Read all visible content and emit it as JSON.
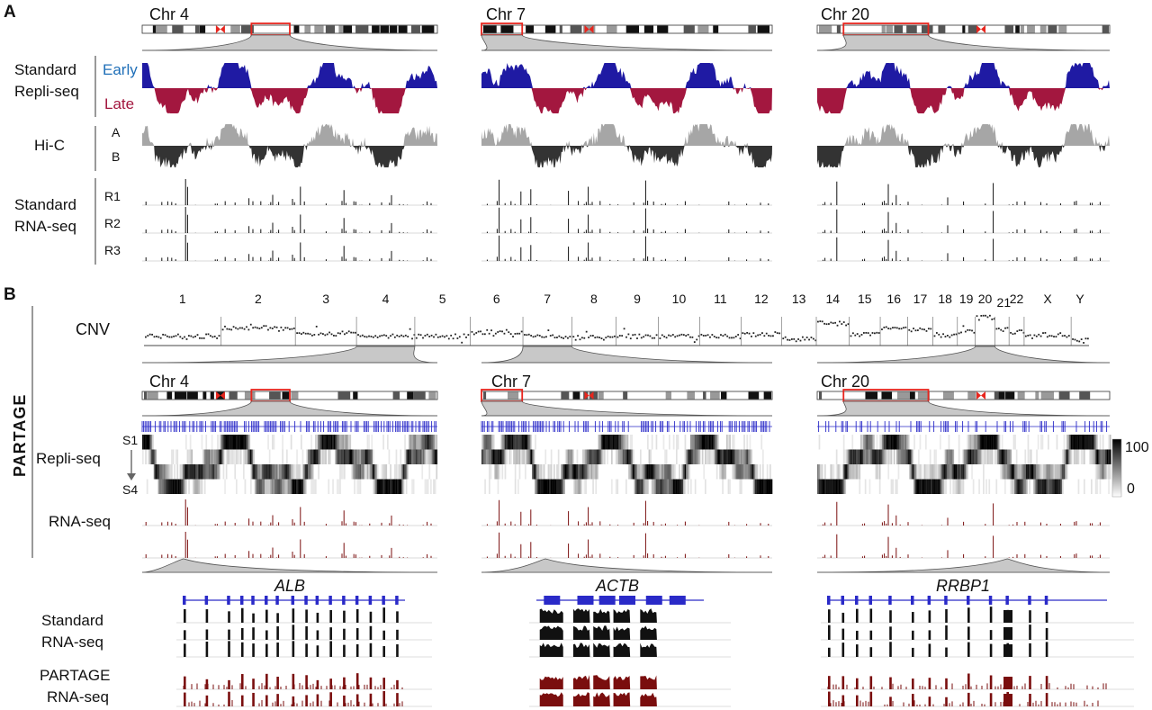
{
  "panel_labels": {
    "a": "A",
    "b": "B"
  },
  "vertical_label": "PARTAGE",
  "colors": {
    "early": "#1f1aa3",
    "late": "#a3173f",
    "hic_a": "#a6a6a6",
    "hic_b": "#333333",
    "rna": "#111111",
    "partage_rna": "#7a0e0e",
    "gene": "#2a2ac8",
    "highlight": "#e8251d",
    "cnv_dot": "#222222",
    "zoom_fill": "#c8c8c8"
  },
  "panel_a": {
    "chromosomes": [
      "Chr 4",
      "Chr 7",
      "Chr 20"
    ],
    "track_labels": {
      "repli_title_1": "Standard",
      "repli_title_2": "Repli-seq",
      "early": "Early",
      "late": "Late",
      "hic": "Hi-C",
      "hic_a": "A",
      "hic_b": "B",
      "rna_title_1": "Standard",
      "rna_title_2": "RNA-seq",
      "replicates": [
        "R1",
        "R2",
        "R3"
      ]
    }
  },
  "panel_b": {
    "cnv_label": "CNV",
    "chromosome_numbers": [
      "1",
      "2",
      "3",
      "4",
      "5",
      "6",
      "7",
      "8",
      "9",
      "10",
      "11",
      "12",
      "13",
      "14",
      "15",
      "16",
      "17",
      "18",
      "19",
      "20",
      "21",
      "22",
      "X",
      "Y"
    ],
    "chromosomes": [
      "Chr 4",
      "Chr 7",
      "Chr 20"
    ],
    "repli_label": "Repli-seq",
    "s1": "S1",
    "s4": "S4",
    "rna_label": "RNA-seq",
    "scale_max": "100",
    "scale_min": "0",
    "genes": [
      "ALB",
      "ACTB",
      "RRBP1"
    ],
    "bottom_labels": {
      "standard_1": "Standard",
      "standard_2": "RNA-seq",
      "partage_1": "PARTAGE",
      "partage_2": "RNA-seq"
    }
  }
}
